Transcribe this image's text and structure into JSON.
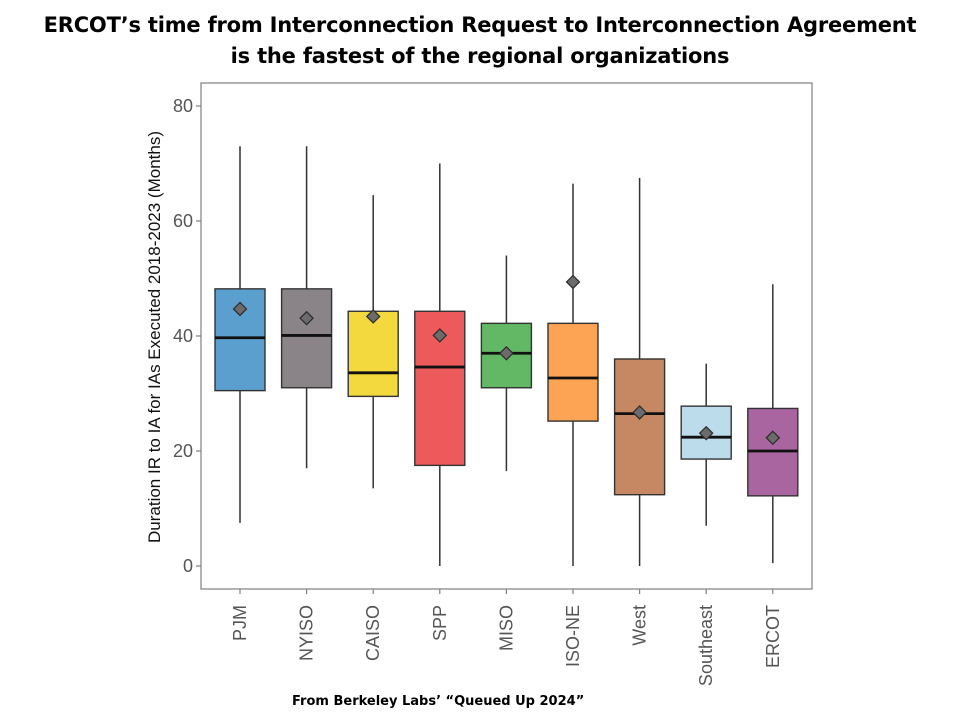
{
  "chart_data": {
    "type": "box",
    "title": "ERCOT’s time from Interconnection Request to Interconnection Agreement is the fastest of the regional organizations",
    "title_lines": [
      "ERCOT’s time from Interconnection Request to Interconnection Agreement",
      "is the fastest of the regional organizations"
    ],
    "xlabel": "",
    "ylabel": "Duration IR to IA for IAs Executed 2018-2023 (Months)",
    "ylim": [
      -4,
      84
    ],
    "yticks": [
      0,
      20,
      40,
      60,
      80
    ],
    "grid": false,
    "categories": [
      "PJM",
      "NYISO",
      "CAISO",
      "SPP",
      "MISO",
      "ISO-NE",
      "West",
      "Southeast",
      "ERCOT"
    ],
    "series": [
      {
        "name": "PJM",
        "color": "#5b9fce",
        "whisker_low": 7.5,
        "q1": 30.5,
        "median": 39.7,
        "q3": 48.2,
        "whisker_high": 73,
        "mean": 44.7
      },
      {
        "name": "NYISO",
        "color": "#8a8488",
        "whisker_low": 17,
        "q1": 31,
        "median": 40.1,
        "q3": 48.2,
        "whisker_high": 73,
        "mean": 43.1
      },
      {
        "name": "CAISO",
        "color": "#f3d93e",
        "whisker_low": 13.5,
        "q1": 29.5,
        "median": 33.6,
        "q3": 44.3,
        "whisker_high": 64.5,
        "mean": 43.4
      },
      {
        "name": "SPP",
        "color": "#ed5a5c",
        "whisker_low": 0,
        "q1": 17.5,
        "median": 34.6,
        "q3": 44.3,
        "whisker_high": 70,
        "mean": 40.1
      },
      {
        "name": "MISO",
        "color": "#62b865",
        "whisker_low": 16.5,
        "q1": 31,
        "median": 37,
        "q3": 42.2,
        "whisker_high": 54,
        "mean": 37
      },
      {
        "name": "ISO-NE",
        "color": "#fca453",
        "whisker_low": 0,
        "q1": 25.2,
        "median": 32.7,
        "q3": 42.2,
        "whisker_high": 66.5,
        "mean": 49.4
      },
      {
        "name": "West",
        "color": "#c58862",
        "whisker_low": 0,
        "q1": 12.4,
        "median": 26.5,
        "q3": 36,
        "whisker_high": 67.5,
        "mean": 26.7
      },
      {
        "name": "Southeast",
        "color": "#bcdcec",
        "whisker_low": 7,
        "q1": 18.6,
        "median": 22.4,
        "q3": 27.8,
        "whisker_high": 35.2,
        "mean": 23.1
      },
      {
        "name": "ERCOT",
        "color": "#a865a0",
        "whisker_low": 0.5,
        "q1": 12.2,
        "median": 20,
        "q3": 27.4,
        "whisker_high": 49,
        "mean": 22.3
      }
    ],
    "source_note": "From Berkeley Labs’ “Queued Up 2024”"
  }
}
